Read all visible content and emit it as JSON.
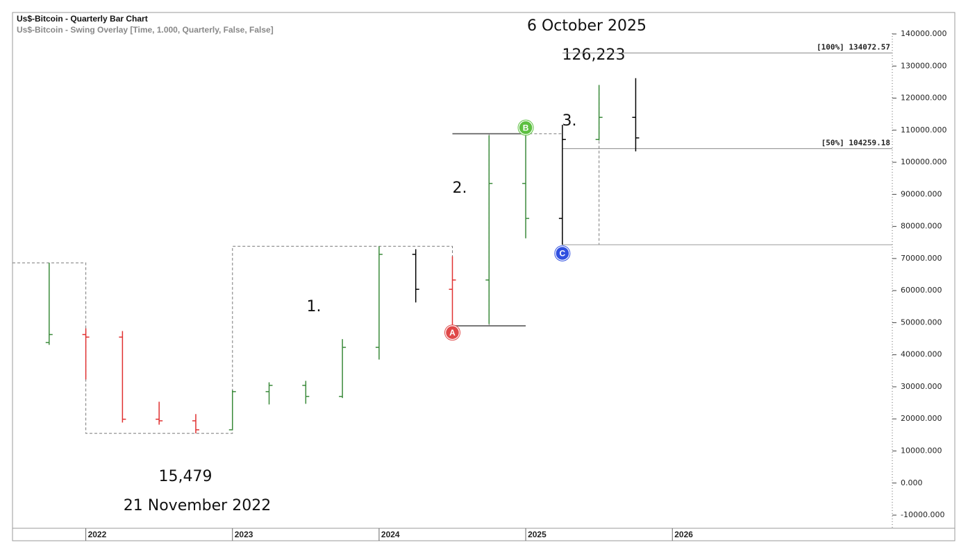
{
  "chart_data": {
    "type": "ohlc",
    "title": "Us$-Bitcoin - Quarterly Bar Chart",
    "subtitle": "Us$-Bitcoin - Swing Overlay [Time, 1.000, Quarterly, False, False]",
    "x": [
      2021.75,
      2022.0,
      2022.25,
      2022.5,
      2022.75,
      2023.0,
      2023.25,
      2023.5,
      2023.75,
      2024.0,
      2024.25,
      2024.5,
      2024.75,
      2025.0,
      2025.25,
      2025.5,
      2025.75
    ],
    "open": [
      43800,
      46300,
      45500,
      19900,
      19400,
      16600,
      28500,
      30450,
      27000,
      42300,
      71300,
      60400,
      63300,
      93400,
      82500,
      107100,
      114000
    ],
    "high": [
      68660,
      48240,
      47400,
      25350,
      21500,
      28940,
      31400,
      31860,
      44870,
      73800,
      72900,
      70700,
      108370,
      109900,
      111700,
      124100,
      126223
    ],
    "low": [
      43080,
      32300,
      18850,
      18200,
      15479,
      16500,
      24500,
      24700,
      26500,
      38500,
      56300,
      49000,
      49600,
      76300,
      74300,
      106800,
      103400
    ],
    "close": [
      46300,
      45500,
      19900,
      19400,
      16600,
      28500,
      30450,
      27000,
      42300,
      71300,
      60400,
      63300,
      93400,
      82500,
      107100,
      114000,
      107600
    ],
    "colors": [
      "#3a8a3a",
      "#e03030",
      "#e03030",
      "#e03030",
      "#e03030",
      "#3a8a3a",
      "#3a8a3a",
      "#3a8a3a",
      "#3a8a3a",
      "#3a8a3a",
      "#000000",
      "#e03030",
      "#3a8a3a",
      "#3a8a3a",
      "#000000",
      "#3a8a3a",
      "#000000"
    ],
    "xlim": [
      2021.5,
      2027.5
    ],
    "xticks": [
      2022,
      2023,
      2024,
      2025,
      2026
    ],
    "ylim": [
      -14100,
      146700
    ],
    "yticks": [
      {
        "value": -10000,
        "label": "-10000.000"
      },
      {
        "value": 0,
        "label": "0.000"
      },
      {
        "value": 10000,
        "label": "10000.000"
      },
      {
        "value": 20000,
        "label": "20000.000"
      },
      {
        "value": 30000,
        "label": "30000.000"
      },
      {
        "value": 40000,
        "label": "40000.000"
      },
      {
        "value": 50000,
        "label": "50000.000"
      },
      {
        "value": 60000,
        "label": "60000.000"
      },
      {
        "value": 70000,
        "label": "70000.000"
      },
      {
        "value": 80000,
        "label": "80000.000"
      },
      {
        "value": 90000,
        "label": "90000.000"
      },
      {
        "value": 100000,
        "label": "100000.000"
      },
      {
        "value": 110000,
        "label": "110000.000"
      },
      {
        "value": 120000,
        "label": "120000.000"
      },
      {
        "value": 130000,
        "label": "130000.000"
      },
      {
        "value": 140000,
        "label": "140000.000"
      }
    ],
    "levels": [
      {
        "label": "[100%] 134072.57",
        "value": 134072.57,
        "x0": 2025.25
      },
      {
        "label": "[50%] 104259.18",
        "value": 104259.18,
        "x0": 2025.25
      }
    ],
    "swing_lines": [
      {
        "value": 49000,
        "x0": 2024.5,
        "x1": 2025.0
      },
      {
        "value": 108900,
        "x0": 2024.5,
        "x1": 2025.0
      },
      {
        "value": 74300,
        "x0": 2025.25,
        "x1": 2027.5
      }
    ],
    "swing_path": {
      "x": [
        2021.5,
        2022.0,
        2022.0,
        2023.0,
        2023.0,
        2024.5,
        2024.5,
        2024.75,
        2024.75,
        2025.25,
        2025.25,
        2025.5,
        2025.5
      ],
      "y": [
        68660,
        68660,
        15479,
        15479,
        73800,
        73800,
        49000,
        49000,
        108900,
        108900,
        74300,
        74300,
        124100
      ]
    },
    "pivots": [
      {
        "label": "A",
        "x": 2024.5,
        "y": 46900,
        "color": "#e04848"
      },
      {
        "label": "B",
        "x": 2025.0,
        "y": 110800,
        "color": "#5cc040"
      },
      {
        "label": "C",
        "x": 2025.25,
        "y": 71600,
        "color": "#3050e0"
      }
    ],
    "annotations": [
      "6 October 2025",
      "126,223",
      "15,479",
      "21 November 2022",
      "1.",
      "2.",
      "3."
    ]
  }
}
